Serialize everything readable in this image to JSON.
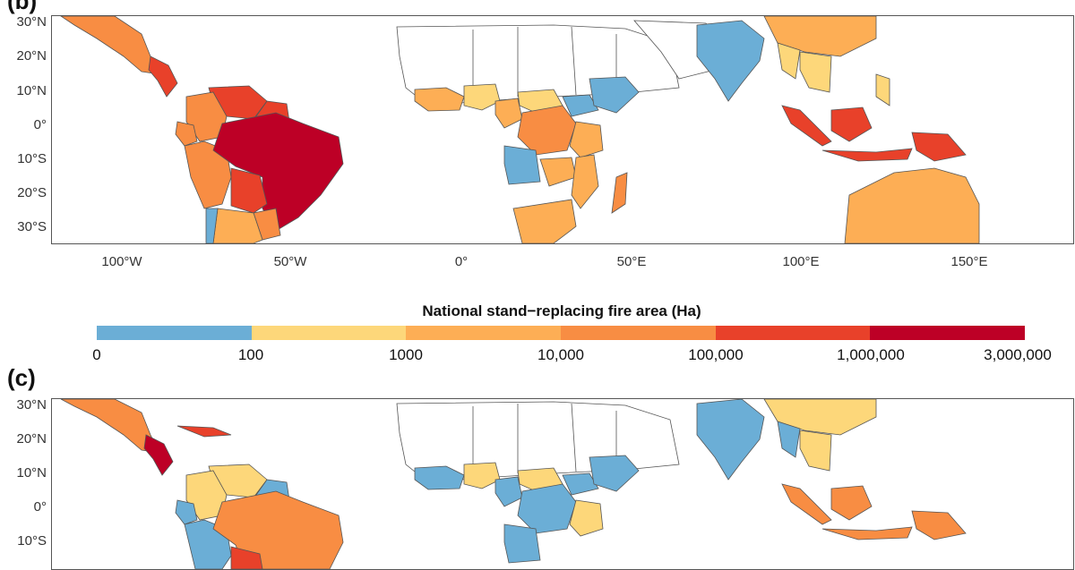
{
  "panels": [
    {
      "label": "(b)"
    },
    {
      "label": "(c)"
    }
  ],
  "axes": {
    "lat_labels": [
      "30°N",
      "20°N",
      "10°N",
      "0°",
      "10°S",
      "20°S",
      "30°S"
    ],
    "lon_labels": [
      "100°W",
      "50°W",
      "0°",
      "50°E",
      "100°E",
      "150°E"
    ]
  },
  "legend": {
    "title": "National stand−replacing fire area (Ha)",
    "breaks": [
      "0",
      "100",
      "1000",
      "10,000",
      "100,000",
      "1,000,000",
      "3,000,000"
    ],
    "colors": [
      "#6baed6",
      "#fdd77a",
      "#fdae55",
      "#f88d43",
      "#e8412a",
      "#bd0026"
    ]
  },
  "map_b": {
    "mexico": 3,
    "central_america": 4,
    "colombia": 3,
    "venezuela": 4,
    "guyana": 4,
    "ecuador": 3,
    "peru": 3,
    "brazil": 5,
    "bolivia": 4,
    "paraguay": 3,
    "argentina": 2,
    "chile": 0,
    "west_africa": 2,
    "nigeria": 1,
    "cameroon": 2,
    "central_africa_rep": 1,
    "drc": 3,
    "sudan_south": 0,
    "ethiopia": 0,
    "angola": 0,
    "zambia": 2,
    "tanzania": 2,
    "mozambique": 2,
    "madagascar": 3,
    "south_africa": 2,
    "india": 0,
    "china": 2,
    "myanmar": 1,
    "thailand": 1,
    "indonesia": 4,
    "sumatra": 4,
    "borneo": 4,
    "png": 4,
    "philippines": 1,
    "australia": 2
  },
  "map_c": {
    "mexico": 3,
    "central_america": 5,
    "cuba": 4,
    "colombia": 1,
    "venezuela": 1,
    "guyana": 0,
    "ecuador": 0,
    "peru": 0,
    "brazil": 3,
    "bolivia": 4,
    "west_africa": 0,
    "nigeria": 1,
    "cameroon": 0,
    "central_africa_rep": 1,
    "drc": 0,
    "sudan_south": 0,
    "ethiopia": 0,
    "tanzania": 1,
    "angola": 0,
    "india": 0,
    "china": 1,
    "myanmar": 0,
    "thailand": 1,
    "indonesia": 3,
    "sumatra": 3,
    "borneo": 3,
    "png": 3
  }
}
